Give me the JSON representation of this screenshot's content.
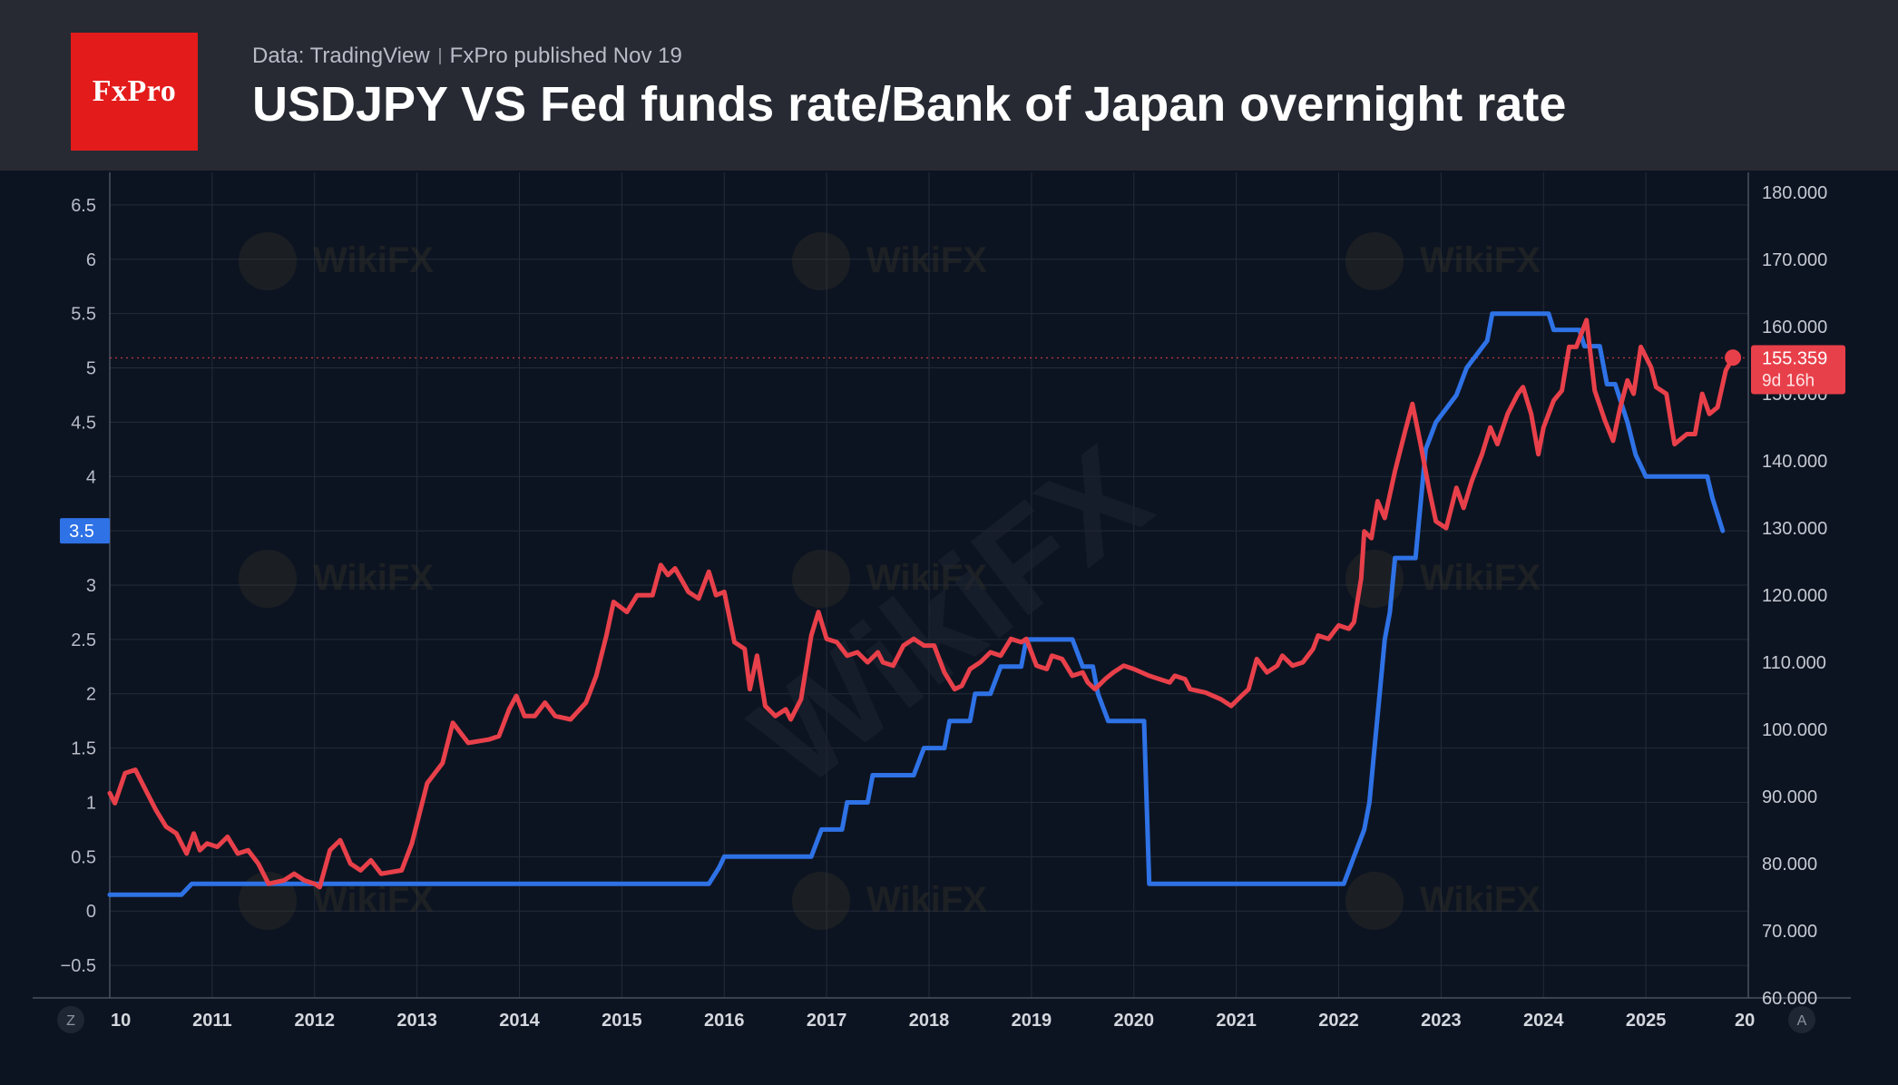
{
  "header": {
    "logo_text": "FxPro",
    "source": "Data: TradingView",
    "published": "FxPro published Nov 19",
    "title": "USDJPY VS Fed funds rate/Bank of Japan overnight rate"
  },
  "watermark": "WikiFX",
  "nav": {
    "left_badge": "Z",
    "right_badge": "A"
  },
  "colors": {
    "fed_line": "#2e72e6",
    "usdjpy_line": "#e8404a",
    "header_bg": "#272a33",
    "chart_bg": "#0d1421",
    "logo_bg": "#e31b1b"
  },
  "chart_data": {
    "type": "line",
    "title": "USDJPY VS Fed funds rate/Bank of Japan overnight rate",
    "x_range": [
      2010.0,
      2026.0
    ],
    "x_ticks": [
      "10",
      "2011",
      "2012",
      "2013",
      "2014",
      "2015",
      "2016",
      "2017",
      "2018",
      "2019",
      "2020",
      "2021",
      "2022",
      "2023",
      "2024",
      "2025",
      "20"
    ],
    "left_axis": {
      "range": [
        -0.8,
        6.8
      ],
      "ticks": [
        "6.5",
        "6",
        "5.5",
        "5",
        "4.5",
        "4",
        "3.5",
        "3",
        "2.5",
        "2",
        "1.5",
        "1",
        "0.5",
        "0",
        "−0.5"
      ],
      "tick_values": [
        6.5,
        6,
        5.5,
        5,
        4.5,
        4,
        3.5,
        3,
        2.5,
        2,
        1.5,
        1,
        0.5,
        0,
        -0.5
      ],
      "current_label": "3.5",
      "current_value": 3.5
    },
    "right_axis": {
      "range": [
        60,
        183
      ],
      "ticks": [
        "180.000",
        "170.000",
        "160.000",
        "150.000",
        "140.000",
        "130.000",
        "120.000",
        "110.000",
        "100.000",
        "90.000",
        "80.000",
        "70.000",
        "60.000"
      ],
      "tick_values": [
        180,
        170,
        160,
        150,
        140,
        130,
        120,
        110,
        100,
        90,
        80,
        70,
        60
      ],
      "current_label": "155.359",
      "countdown": "9d 16h",
      "current_value": 155.359
    },
    "series": [
      {
        "name": "Fed funds rate",
        "axis": "left",
        "color": "#2e72e6",
        "points": [
          [
            2010.0,
            0.15
          ],
          [
            2010.7,
            0.15
          ],
          [
            2010.8,
            0.25
          ],
          [
            2015.85,
            0.25
          ],
          [
            2015.95,
            0.4
          ],
          [
            2016.0,
            0.5
          ],
          [
            2016.85,
            0.5
          ],
          [
            2016.95,
            0.75
          ],
          [
            2017.15,
            0.75
          ],
          [
            2017.2,
            1.0
          ],
          [
            2017.4,
            1.0
          ],
          [
            2017.45,
            1.25
          ],
          [
            2017.85,
            1.25
          ],
          [
            2017.95,
            1.5
          ],
          [
            2018.15,
            1.5
          ],
          [
            2018.2,
            1.75
          ],
          [
            2018.4,
            1.75
          ],
          [
            2018.45,
            2.0
          ],
          [
            2018.6,
            2.0
          ],
          [
            2018.7,
            2.25
          ],
          [
            2018.9,
            2.25
          ],
          [
            2018.95,
            2.5
          ],
          [
            2019.4,
            2.5
          ],
          [
            2019.5,
            2.25
          ],
          [
            2019.6,
            2.25
          ],
          [
            2019.65,
            2.0
          ],
          [
            2019.75,
            1.75
          ],
          [
            2020.1,
            1.75
          ],
          [
            2020.15,
            0.25
          ],
          [
            2022.05,
            0.25
          ],
          [
            2022.15,
            0.5
          ],
          [
            2022.25,
            0.75
          ],
          [
            2022.3,
            1.0
          ],
          [
            2022.35,
            1.5
          ],
          [
            2022.4,
            2.0
          ],
          [
            2022.45,
            2.5
          ],
          [
            2022.5,
            2.75
          ],
          [
            2022.55,
            3.25
          ],
          [
            2022.75,
            3.25
          ],
          [
            2022.8,
            3.75
          ],
          [
            2022.85,
            4.25
          ],
          [
            2022.95,
            4.5
          ],
          [
            2023.15,
            4.75
          ],
          [
            2023.25,
            5.0
          ],
          [
            2023.45,
            5.25
          ],
          [
            2023.5,
            5.5
          ],
          [
            2024.05,
            5.5
          ],
          [
            2024.1,
            5.35
          ],
          [
            2024.35,
            5.35
          ],
          [
            2024.4,
            5.2
          ],
          [
            2024.55,
            5.2
          ],
          [
            2024.62,
            4.85
          ],
          [
            2024.7,
            4.85
          ],
          [
            2024.82,
            4.5
          ],
          [
            2024.9,
            4.2
          ],
          [
            2025.0,
            4.0
          ],
          [
            2025.6,
            4.0
          ],
          [
            2025.65,
            3.8
          ],
          [
            2025.75,
            3.5
          ]
        ]
      },
      {
        "name": "USDJPY",
        "axis": "right",
        "color": "#e8404a",
        "points": [
          [
            2010.0,
            90.5
          ],
          [
            2010.05,
            89.0
          ],
          [
            2010.15,
            93.5
          ],
          [
            2010.25,
            94.0
          ],
          [
            2010.35,
            91.0
          ],
          [
            2010.45,
            88.0
          ],
          [
            2010.55,
            85.5
          ],
          [
            2010.65,
            84.5
          ],
          [
            2010.75,
            81.5
          ],
          [
            2010.82,
            84.5
          ],
          [
            2010.88,
            82.0
          ],
          [
            2010.95,
            83.0
          ],
          [
            2011.05,
            82.5
          ],
          [
            2011.15,
            84.0
          ],
          [
            2011.25,
            81.5
          ],
          [
            2011.35,
            82.0
          ],
          [
            2011.45,
            80.0
          ],
          [
            2011.55,
            77.0
          ],
          [
            2011.7,
            77.5
          ],
          [
            2011.8,
            78.5
          ],
          [
            2011.9,
            77.5
          ],
          [
            2012.0,
            77.0
          ],
          [
            2012.05,
            76.5
          ],
          [
            2012.15,
            82.0
          ],
          [
            2012.25,
            83.5
          ],
          [
            2012.35,
            80.0
          ],
          [
            2012.45,
            79.0
          ],
          [
            2012.55,
            80.5
          ],
          [
            2012.65,
            78.5
          ],
          [
            2012.85,
            79.0
          ],
          [
            2012.95,
            83.0
          ],
          [
            2013.1,
            92.0
          ],
          [
            2013.25,
            95.0
          ],
          [
            2013.35,
            101.0
          ],
          [
            2013.5,
            98.0
          ],
          [
            2013.7,
            98.5
          ],
          [
            2013.8,
            99.0
          ],
          [
            2013.9,
            103.0
          ],
          [
            2013.97,
            105.0
          ],
          [
            2014.05,
            102.0
          ],
          [
            2014.15,
            102.0
          ],
          [
            2014.25,
            104.0
          ],
          [
            2014.35,
            102.0
          ],
          [
            2014.5,
            101.5
          ],
          [
            2014.65,
            104.0
          ],
          [
            2014.75,
            108.0
          ],
          [
            2014.85,
            114.0
          ],
          [
            2014.92,
            119.0
          ],
          [
            2015.05,
            117.5
          ],
          [
            2015.15,
            120.0
          ],
          [
            2015.3,
            120.0
          ],
          [
            2015.38,
            124.5
          ],
          [
            2015.45,
            123.0
          ],
          [
            2015.52,
            124.0
          ],
          [
            2015.65,
            120.5
          ],
          [
            2015.75,
            119.5
          ],
          [
            2015.85,
            123.5
          ],
          [
            2015.92,
            120.0
          ],
          [
            2016.0,
            120.5
          ],
          [
            2016.1,
            113.0
          ],
          [
            2016.2,
            112.0
          ],
          [
            2016.25,
            106.0
          ],
          [
            2016.32,
            111.0
          ],
          [
            2016.4,
            103.5
          ],
          [
            2016.5,
            102.0
          ],
          [
            2016.6,
            103.0
          ],
          [
            2016.65,
            101.5
          ],
          [
            2016.75,
            104.5
          ],
          [
            2016.85,
            114.0
          ],
          [
            2016.92,
            117.5
          ],
          [
            2017.0,
            113.5
          ],
          [
            2017.1,
            113.0
          ],
          [
            2017.2,
            111.0
          ],
          [
            2017.3,
            111.5
          ],
          [
            2017.4,
            110.0
          ],
          [
            2017.5,
            111.5
          ],
          [
            2017.55,
            110.0
          ],
          [
            2017.65,
            109.5
          ],
          [
            2017.75,
            112.5
          ],
          [
            2017.85,
            113.5
          ],
          [
            2017.95,
            112.5
          ],
          [
            2018.05,
            112.5
          ],
          [
            2018.15,
            108.5
          ],
          [
            2018.25,
            106.0
          ],
          [
            2018.32,
            106.5
          ],
          [
            2018.4,
            109.0
          ],
          [
            2018.5,
            110.0
          ],
          [
            2018.6,
            111.5
          ],
          [
            2018.7,
            111.0
          ],
          [
            2018.8,
            113.5
          ],
          [
            2018.9,
            113.0
          ],
          [
            2018.95,
            113.5
          ],
          [
            2019.05,
            109.5
          ],
          [
            2019.15,
            109.0
          ],
          [
            2019.2,
            111.0
          ],
          [
            2019.3,
            110.5
          ],
          [
            2019.4,
            108.0
          ],
          [
            2019.5,
            108.5
          ],
          [
            2019.55,
            107.0
          ],
          [
            2019.62,
            106.0
          ],
          [
            2019.72,
            107.5
          ],
          [
            2019.8,
            108.5
          ],
          [
            2019.9,
            109.5
          ],
          [
            2020.0,
            109.0
          ],
          [
            2020.15,
            108.0
          ],
          [
            2020.25,
            107.5
          ],
          [
            2020.35,
            107.0
          ],
          [
            2020.4,
            108.0
          ],
          [
            2020.5,
            107.5
          ],
          [
            2020.55,
            106.0
          ],
          [
            2020.7,
            105.5
          ],
          [
            2020.85,
            104.5
          ],
          [
            2020.95,
            103.5
          ],
          [
            2021.05,
            105.0
          ],
          [
            2021.12,
            106.0
          ],
          [
            2021.2,
            110.5
          ],
          [
            2021.3,
            108.5
          ],
          [
            2021.4,
            109.5
          ],
          [
            2021.45,
            111.0
          ],
          [
            2021.55,
            109.5
          ],
          [
            2021.65,
            110.0
          ],
          [
            2021.75,
            112.0
          ],
          [
            2021.8,
            114.0
          ],
          [
            2021.9,
            113.5
          ],
          [
            2022.0,
            115.5
          ],
          [
            2022.1,
            115.0
          ],
          [
            2022.15,
            116.0
          ],
          [
            2022.22,
            122.5
          ],
          [
            2022.25,
            129.5
          ],
          [
            2022.32,
            128.5
          ],
          [
            2022.38,
            134.0
          ],
          [
            2022.45,
            131.5
          ],
          [
            2022.55,
            138.5
          ],
          [
            2022.65,
            144.5
          ],
          [
            2022.72,
            148.5
          ],
          [
            2022.8,
            142.5
          ],
          [
            2022.88,
            136.0
          ],
          [
            2022.95,
            131.0
          ],
          [
            2023.05,
            130.0
          ],
          [
            2023.15,
            136.0
          ],
          [
            2023.22,
            133.0
          ],
          [
            2023.3,
            137.0
          ],
          [
            2023.4,
            141.0
          ],
          [
            2023.48,
            145.0
          ],
          [
            2023.55,
            142.5
          ],
          [
            2023.65,
            147.0
          ],
          [
            2023.75,
            150.0
          ],
          [
            2023.8,
            151.0
          ],
          [
            2023.88,
            147.0
          ],
          [
            2023.95,
            141.0
          ],
          [
            2024.0,
            145.0
          ],
          [
            2024.1,
            149.0
          ],
          [
            2024.18,
            150.5
          ],
          [
            2024.25,
            157.0
          ],
          [
            2024.32,
            157.0
          ],
          [
            2024.42,
            161.0
          ],
          [
            2024.5,
            150.5
          ],
          [
            2024.6,
            146.0
          ],
          [
            2024.68,
            143.0
          ],
          [
            2024.75,
            148.0
          ],
          [
            2024.82,
            152.0
          ],
          [
            2024.88,
            150.0
          ],
          [
            2024.95,
            157.0
          ],
          [
            2025.05,
            154.0
          ],
          [
            2025.1,
            151.0
          ],
          [
            2025.2,
            150.0
          ],
          [
            2025.28,
            142.5
          ],
          [
            2025.4,
            144.0
          ],
          [
            2025.48,
            144.0
          ],
          [
            2025.55,
            150.0
          ],
          [
            2025.62,
            147.0
          ],
          [
            2025.7,
            148.0
          ],
          [
            2025.78,
            153.5
          ],
          [
            2025.85,
            155.4
          ]
        ]
      }
    ]
  }
}
